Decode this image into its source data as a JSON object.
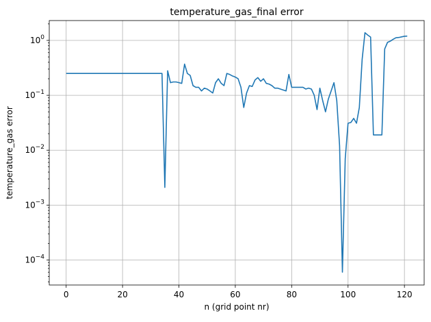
{
  "chart_data": {
    "type": "line",
    "title": "temperature_gas_final error",
    "xlabel": "n (grid point nr)",
    "ylabel": "temperature_gas error",
    "x_scale": "linear",
    "y_scale": "log",
    "xlim": [
      -6,
      127
    ],
    "ylim": [
      3.5e-05,
      2.3
    ],
    "x_ticks": [
      0,
      20,
      40,
      60,
      80,
      100,
      120
    ],
    "x_tick_labels": [
      "0",
      "20",
      "40",
      "60",
      "80",
      "100",
      "120"
    ],
    "y_ticks": [
      0.0001,
      0.001,
      0.01,
      0.1,
      1
    ],
    "y_tick_labels": [
      {
        "base": "10",
        "exp": "−4"
      },
      {
        "base": "10",
        "exp": "−3"
      },
      {
        "base": "10",
        "exp": "−2"
      },
      {
        "base": "10",
        "exp": "−1"
      },
      {
        "base": "10",
        "exp": "0"
      }
    ],
    "grid": true,
    "series": [
      {
        "color": "#1f77b4",
        "x": [
          0,
          1,
          2,
          3,
          4,
          5,
          6,
          7,
          8,
          9,
          10,
          11,
          12,
          13,
          14,
          15,
          16,
          17,
          18,
          19,
          20,
          21,
          22,
          23,
          24,
          25,
          26,
          27,
          28,
          29,
          30,
          31,
          32,
          33,
          34,
          35,
          36,
          37,
          38,
          39,
          40,
          41,
          42,
          43,
          44,
          45,
          46,
          47,
          48,
          49,
          50,
          51,
          52,
          53,
          54,
          55,
          56,
          57,
          58,
          59,
          60,
          61,
          62,
          63,
          64,
          65,
          66,
          67,
          68,
          69,
          70,
          71,
          72,
          73,
          74,
          75,
          76,
          77,
          78,
          79,
          80,
          81,
          82,
          83,
          84,
          85,
          86,
          87,
          88,
          89,
          90,
          91,
          92,
          93,
          94,
          95,
          96,
          97,
          98,
          99,
          100,
          101,
          102,
          103,
          104,
          105,
          106,
          107,
          108,
          109,
          110,
          111,
          112,
          113,
          114,
          115,
          116,
          117,
          118,
          119,
          120,
          121
        ],
        "y": [
          0.25,
          0.25,
          0.25,
          0.25,
          0.25,
          0.25,
          0.25,
          0.25,
          0.25,
          0.25,
          0.25,
          0.25,
          0.25,
          0.25,
          0.25,
          0.25,
          0.25,
          0.25,
          0.25,
          0.25,
          0.25,
          0.25,
          0.25,
          0.25,
          0.25,
          0.25,
          0.25,
          0.25,
          0.25,
          0.25,
          0.25,
          0.25,
          0.25,
          0.25,
          0.25,
          0.0021,
          0.28,
          0.17,
          0.175,
          0.175,
          0.17,
          0.165,
          0.37,
          0.25,
          0.23,
          0.15,
          0.14,
          0.14,
          0.12,
          0.135,
          0.13,
          0.12,
          0.11,
          0.17,
          0.2,
          0.165,
          0.15,
          0.25,
          0.24,
          0.225,
          0.215,
          0.2,
          0.14,
          0.06,
          0.11,
          0.15,
          0.145,
          0.19,
          0.21,
          0.18,
          0.2,
          0.165,
          0.16,
          0.15,
          0.135,
          0.135,
          0.13,
          0.125,
          0.12,
          0.24,
          0.14,
          0.14,
          0.14,
          0.14,
          0.14,
          0.13,
          0.135,
          0.13,
          0.1,
          0.055,
          0.135,
          0.08,
          0.05,
          0.085,
          0.12,
          0.17,
          0.08,
          0.012,
          6e-05,
          0.007,
          0.031,
          0.032,
          0.038,
          0.031,
          0.06,
          0.45,
          1.38,
          1.25,
          1.15,
          0.019,
          0.019,
          0.019,
          0.019,
          0.7,
          0.92,
          0.97,
          1.05,
          1.12,
          1.13,
          1.16,
          1.19,
          1.2
        ]
      }
    ]
  }
}
